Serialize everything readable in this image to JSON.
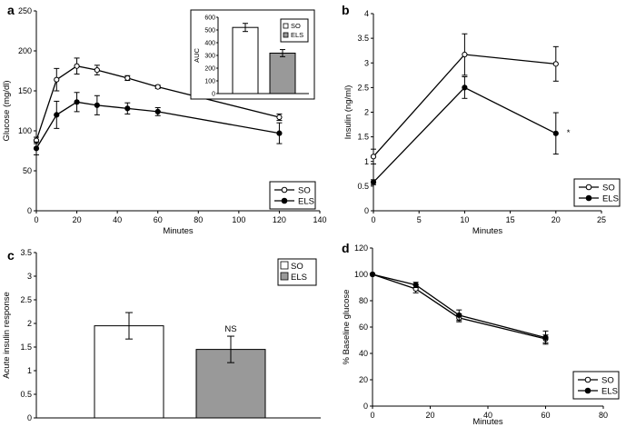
{
  "chart_data": [
    {
      "panel": "a",
      "type": "line",
      "xlabel": "Minutes",
      "ylabel": "Glucose (mg/dl)",
      "xlim": [
        0,
        140
      ],
      "ylim": [
        0,
        250
      ],
      "xticks": [
        0,
        20,
        40,
        60,
        80,
        100,
        120,
        140
      ],
      "yticks": [
        0,
        50,
        100,
        150,
        200,
        250
      ],
      "legend": "bottom-right",
      "series": [
        {
          "name": "SO",
          "marker": "open",
          "x": [
            0,
            10,
            20,
            30,
            45,
            60,
            120
          ],
          "y": [
            88,
            164,
            181,
            176,
            166,
            155,
            117
          ],
          "err": [
            4,
            14,
            10,
            6,
            3,
            2,
            4
          ]
        },
        {
          "name": "ELS",
          "marker": "filled",
          "x": [
            0,
            10,
            20,
            30,
            45,
            60,
            120
          ],
          "y": [
            78,
            120,
            136,
            132,
            128,
            124,
            97
          ],
          "err": [
            8,
            17,
            12,
            12,
            7,
            5,
            13
          ]
        }
      ],
      "inset": {
        "type": "bar",
        "ylabel": "AUC",
        "ylim": [
          0,
          600
        ],
        "yticks": [
          0,
          100,
          200,
          300,
          400,
          500,
          600
        ],
        "categories": [
          "SO",
          "ELS"
        ],
        "values": [
          520,
          318
        ],
        "err": [
          32,
          28
        ],
        "colors": [
          "#ffffff",
          "#999999"
        ],
        "annotations": [
          "",
          "*"
        ],
        "legend": "top-right"
      }
    },
    {
      "panel": "b",
      "type": "line",
      "xlabel": "Minutes",
      "ylabel": "Insulin (ng/ml)",
      "xlim": [
        0,
        25
      ],
      "ylim": [
        0,
        4
      ],
      "xticks": [
        0,
        5,
        10,
        15,
        20,
        25
      ],
      "yticks": [
        0,
        0.5,
        1,
        1.5,
        2,
        2.5,
        3,
        3.5,
        4
      ],
      "ytick_labels": [
        "0",
        "0.5",
        "1",
        "1.5",
        "2",
        "2.5",
        "3",
        "3.5",
        "4"
      ],
      "legend": "bottom-right",
      "annotation": "*",
      "series": [
        {
          "name": "SO",
          "marker": "open",
          "x": [
            0,
            10,
            20
          ],
          "y": [
            1.1,
            3.17,
            2.98
          ],
          "err": [
            0.15,
            0.42,
            0.35
          ]
        },
        {
          "name": "ELS",
          "marker": "filled",
          "x": [
            0,
            10,
            20
          ],
          "y": [
            0.58,
            2.5,
            1.57
          ],
          "err": [
            0.05,
            0.22,
            0.42
          ]
        }
      ]
    },
    {
      "panel": "c",
      "type": "bar",
      "ylabel": "Acute insulin response",
      "ylim": [
        0,
        3.5
      ],
      "yticks": [
        0,
        0.5,
        1,
        1.5,
        2,
        2.5,
        3,
        3.5
      ],
      "ytick_labels": [
        "0",
        "0.5",
        "1",
        "1.5",
        "2",
        "2.5",
        "3",
        "3.5"
      ],
      "categories": [
        "SO",
        "ELS"
      ],
      "values": [
        1.95,
        1.45
      ],
      "err": [
        0.28,
        0.28
      ],
      "colors": [
        "#ffffff",
        "#999999"
      ],
      "annotations": [
        "",
        "NS"
      ],
      "legend": "top-right"
    },
    {
      "panel": "d",
      "type": "line",
      "xlabel": "Minutes",
      "ylabel": "% Baseline glucose",
      "xlim": [
        0,
        80
      ],
      "ylim": [
        0,
        120
      ],
      "xticks": [
        0,
        20,
        40,
        60,
        80
      ],
      "yticks": [
        0,
        20,
        40,
        60,
        80,
        100,
        120
      ],
      "legend": "bottom-right",
      "series": [
        {
          "name": "SO",
          "marker": "open",
          "x": [
            0,
            15,
            30,
            60
          ],
          "y": [
            100,
            89,
            67,
            51
          ],
          "err": [
            0,
            3,
            3,
            3
          ]
        },
        {
          "name": "ELS",
          "marker": "filled",
          "x": [
            0,
            15,
            30,
            60
          ],
          "y": [
            100,
            92,
            69,
            52
          ],
          "err": [
            0,
            2,
            4,
            5
          ]
        }
      ]
    }
  ]
}
